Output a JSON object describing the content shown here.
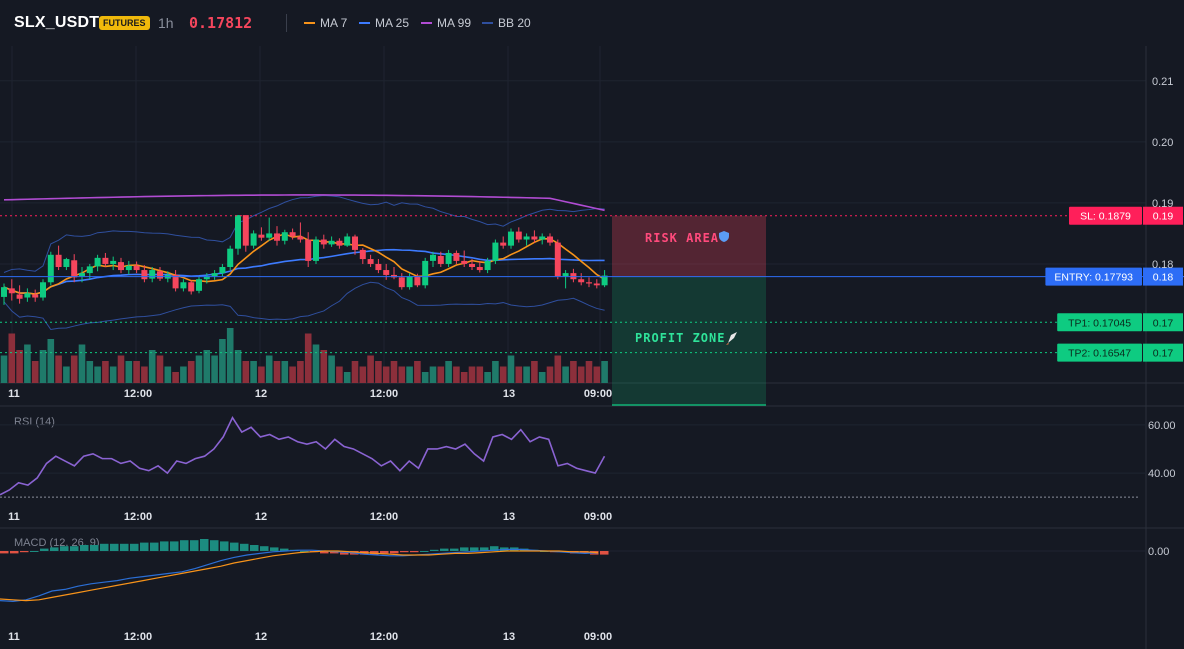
{
  "header": {
    "symbol": "SLX_USDT",
    "badge": "FUTURES",
    "interval": "1h",
    "last_price": "0.17812",
    "legend": [
      {
        "label": "MA 7",
        "color": "#f7931a"
      },
      {
        "label": "MA 25",
        "color": "#3d7bff"
      },
      {
        "label": "MA 99",
        "color": "#b14cd3"
      },
      {
        "label": "BB 20",
        "color": "#2f4f9e"
      }
    ]
  },
  "colors": {
    "up": "#0ecb81",
    "down": "#f6465d",
    "vol_up": "#1f7a6a",
    "vol_down": "#8c2f3b",
    "rsi": "#8a63d2",
    "macd_line": "#2b6fd6",
    "signal_line": "#f7931a",
    "sl": "#ff1f5a",
    "entry": "#2d6df6",
    "tp": "#0ecb81"
  },
  "price_axis": {
    "ticks": [
      "0.21",
      "0.20",
      "0.19",
      "0.18"
    ],
    "tick_values": [
      0.21,
      0.2,
      0.19,
      0.18
    ],
    "range": [
      0.1605,
      0.2157
    ]
  },
  "time_axis": [
    "11",
    "12:00",
    "12",
    "12:00",
    "13",
    "09:00"
  ],
  "levels": {
    "sl": {
      "label": "SL: 0.1879",
      "axis": "0.19",
      "value": 0.1879
    },
    "entry": {
      "label": "ENTRY: 0.17793",
      "axis": "0.18",
      "value": 0.17793
    },
    "tp1": {
      "label": "TP1: 0.17045",
      "axis": "0.17",
      "value": 0.17045
    },
    "tp2": {
      "label": "TP2: 0.16547",
      "axis": "0.17",
      "value": 0.16547
    }
  },
  "zones": {
    "risk": {
      "label": "RISK AREA",
      "icon": "shield-icon"
    },
    "profit": {
      "label": "PROFIT ZONE",
      "icon": "rocket-icon"
    }
  },
  "rsi": {
    "label": "RSI (14)",
    "ticks": [
      "60.00",
      "40.00"
    ],
    "tick_values": [
      60,
      40
    ],
    "threshold": 30,
    "range": [
      28,
      67
    ]
  },
  "macd": {
    "label": "MACD (12, 26, 9)",
    "ticks": [
      "0.00"
    ],
    "tick_values": [
      0
    ]
  },
  "chart_data": {
    "type": "candlestick",
    "candles": [
      [
        0.1746,
        0.1768,
        0.1733,
        0.1762
      ],
      [
        0.176,
        0.1775,
        0.174,
        0.1752
      ],
      [
        0.175,
        0.1765,
        0.1735,
        0.1743
      ],
      [
        0.1745,
        0.176,
        0.1738,
        0.1752
      ],
      [
        0.175,
        0.1758,
        0.1738,
        0.1745
      ],
      [
        0.1745,
        0.1775,
        0.174,
        0.177
      ],
      [
        0.177,
        0.182,
        0.1765,
        0.1815
      ],
      [
        0.1815,
        0.183,
        0.179,
        0.1795
      ],
      [
        0.1795,
        0.181,
        0.179,
        0.1808
      ],
      [
        0.1806,
        0.1816,
        0.177,
        0.1778
      ],
      [
        0.178,
        0.1795,
        0.177,
        0.1785
      ],
      [
        0.1785,
        0.18,
        0.1775,
        0.1796
      ],
      [
        0.1796,
        0.1815,
        0.1788,
        0.181
      ],
      [
        0.181,
        0.1818,
        0.1795,
        0.18
      ],
      [
        0.18,
        0.1812,
        0.179,
        0.1805
      ],
      [
        0.1803,
        0.181,
        0.1785,
        0.179
      ],
      [
        0.179,
        0.1805,
        0.1783,
        0.1797
      ],
      [
        0.1797,
        0.1804,
        0.1785,
        0.179
      ],
      [
        0.179,
        0.1798,
        0.177,
        0.1775
      ],
      [
        0.1776,
        0.1795,
        0.177,
        0.179
      ],
      [
        0.1788,
        0.1795,
        0.1772,
        0.1776
      ],
      [
        0.1776,
        0.1788,
        0.177,
        0.1782
      ],
      [
        0.1782,
        0.179,
        0.1755,
        0.176
      ],
      [
        0.176,
        0.1775,
        0.1755,
        0.177
      ],
      [
        0.177,
        0.1773,
        0.175,
        0.1755
      ],
      [
        0.1756,
        0.178,
        0.1752,
        0.1775
      ],
      [
        0.1775,
        0.1785,
        0.1768,
        0.178
      ],
      [
        0.178,
        0.179,
        0.1774,
        0.1785
      ],
      [
        0.1785,
        0.18,
        0.178,
        0.1795
      ],
      [
        0.1795,
        0.183,
        0.179,
        0.1825
      ],
      [
        0.1825,
        0.188,
        0.1815,
        0.188
      ],
      [
        0.188,
        0.188,
        0.182,
        0.183
      ],
      [
        0.183,
        0.1855,
        0.1825,
        0.185
      ],
      [
        0.1848,
        0.186,
        0.1838,
        0.1843
      ],
      [
        0.1843,
        0.1876,
        0.1838,
        0.185
      ],
      [
        0.185,
        0.1862,
        0.183,
        0.1838
      ],
      [
        0.1838,
        0.1856,
        0.1832,
        0.1852
      ],
      [
        0.1852,
        0.1858,
        0.184,
        0.1845
      ],
      [
        0.1845,
        0.1868,
        0.1835,
        0.184
      ],
      [
        0.184,
        0.1852,
        0.1795,
        0.1805
      ],
      [
        0.1805,
        0.1845,
        0.18,
        0.184
      ],
      [
        0.184,
        0.1848,
        0.1825,
        0.1832
      ],
      [
        0.1832,
        0.1845,
        0.1828,
        0.1838
      ],
      [
        0.1838,
        0.1842,
        0.1825,
        0.183
      ],
      [
        0.183,
        0.185,
        0.1828,
        0.1845
      ],
      [
        0.1845,
        0.1848,
        0.1815,
        0.1823
      ],
      [
        0.1823,
        0.1826,
        0.18,
        0.1808
      ],
      [
        0.1808,
        0.1815,
        0.1795,
        0.18
      ],
      [
        0.18,
        0.1808,
        0.1785,
        0.179
      ],
      [
        0.179,
        0.18,
        0.1774,
        0.1782
      ],
      [
        0.1782,
        0.1795,
        0.1775,
        0.1778
      ],
      [
        0.1778,
        0.1785,
        0.1758,
        0.1762
      ],
      [
        0.1762,
        0.1785,
        0.1758,
        0.178
      ],
      [
        0.178,
        0.1784,
        0.1762,
        0.1765
      ],
      [
        0.1765,
        0.181,
        0.176,
        0.1805
      ],
      [
        0.1805,
        0.182,
        0.1795,
        0.1815
      ],
      [
        0.1813,
        0.182,
        0.1795,
        0.18
      ],
      [
        0.18,
        0.1823,
        0.1795,
        0.1818
      ],
      [
        0.1818,
        0.1822,
        0.18,
        0.1805
      ],
      [
        0.1805,
        0.1822,
        0.1795,
        0.18
      ],
      [
        0.18,
        0.1808,
        0.179,
        0.1795
      ],
      [
        0.1795,
        0.1805,
        0.1786,
        0.179
      ],
      [
        0.179,
        0.181,
        0.1785,
        0.1805
      ],
      [
        0.1805,
        0.184,
        0.18,
        0.1835
      ],
      [
        0.1835,
        0.1845,
        0.1825,
        0.183
      ],
      [
        0.183,
        0.1858,
        0.1825,
        0.1853
      ],
      [
        0.1853,
        0.186,
        0.1835,
        0.184
      ],
      [
        0.184,
        0.185,
        0.183,
        0.1845
      ],
      [
        0.1845,
        0.1855,
        0.1835,
        0.184
      ],
      [
        0.184,
        0.185,
        0.1832,
        0.1845
      ],
      [
        0.1845,
        0.185,
        0.183,
        0.1835
      ],
      [
        0.1835,
        0.184,
        0.1775,
        0.178
      ],
      [
        0.178,
        0.179,
        0.176,
        0.1785
      ],
      [
        0.1785,
        0.1792,
        0.177,
        0.1775
      ],
      [
        0.1775,
        0.1785,
        0.1765,
        0.177
      ],
      [
        0.177,
        0.1778,
        0.1762,
        0.1768
      ],
      [
        0.1768,
        0.1775,
        0.176,
        0.1765
      ],
      [
        0.1765,
        0.179,
        0.1762,
        0.1781
      ]
    ],
    "volume": [
      5,
      9,
      6,
      7,
      4,
      6,
      8,
      5,
      3,
      5,
      7,
      4,
      3,
      4,
      3,
      5,
      4,
      4,
      3,
      6,
      5,
      3,
      2,
      3,
      4,
      5,
      6,
      5,
      8,
      10,
      6,
      4,
      4,
      3,
      5,
      4,
      4,
      3,
      4,
      9,
      7,
      6,
      5,
      3,
      2,
      4,
      3,
      5,
      4,
      3,
      4,
      3,
      3,
      4,
      2,
      3,
      3,
      4,
      3,
      2,
      3,
      3,
      2,
      4,
      3,
      5,
      3,
      3,
      4,
      2,
      3,
      5,
      3,
      4,
      3,
      4,
      3,
      4
    ],
    "rsi": [
      31,
      33,
      36,
      35,
      38,
      44,
      47,
      45,
      43,
      47,
      48,
      46,
      46,
      44,
      45,
      42,
      41,
      43,
      40,
      45,
      44,
      46,
      47,
      50,
      55,
      63,
      57,
      59,
      55,
      56,
      54,
      55,
      53,
      52,
      53,
      50,
      54,
      51,
      50,
      48,
      46,
      43,
      45,
      41,
      45,
      42,
      50,
      50,
      51,
      50,
      52,
      48,
      45,
      55,
      56,
      54,
      58,
      53,
      55,
      54,
      43,
      44,
      42,
      41,
      40,
      47
    ],
    "macd": [
      -6.2,
      -6.3,
      -6.1,
      -5.6,
      -5.0,
      -4.8,
      -4.4,
      -4.1,
      -3.9,
      -3.7,
      -3.4,
      -3.2,
      -3.0,
      -2.8,
      -2.6,
      -2.2,
      -1.7,
      -1.2,
      -0.8,
      -0.5,
      -0.3,
      -0.1,
      0.0,
      0.1,
      0.1,
      0.0,
      -0.1,
      -0.2,
      -0.4,
      -0.5,
      -0.6,
      -0.6,
      -0.5,
      -0.4,
      -0.3,
      -0.2,
      -0.1,
      0.0,
      0.1,
      0.2,
      0.2,
      0.1,
      0.0,
      -0.1,
      -0.2,
      -0.3,
      -0.2
    ],
    "signal": [
      -6.0,
      -6.1,
      -6.2,
      -6.1,
      -5.8,
      -5.5,
      -5.2,
      -4.9,
      -4.6,
      -4.3,
      -4.0,
      -3.7,
      -3.4,
      -3.1,
      -2.8,
      -2.5,
      -2.2,
      -1.9,
      -1.5,
      -1.2,
      -0.9,
      -0.6,
      -0.4,
      -0.2,
      -0.1,
      0.0,
      0.0,
      -0.1,
      -0.2,
      -0.3,
      -0.4,
      -0.5,
      -0.5,
      -0.5,
      -0.4,
      -0.3,
      -0.3,
      -0.2,
      -0.1,
      0.0,
      0.0,
      0.0,
      0.0,
      0.0,
      -0.1,
      -0.1,
      -0.2
    ],
    "hist": [
      -2,
      -2,
      -1,
      0,
      2,
      3,
      4,
      4,
      5,
      5,
      6,
      6,
      6,
      6,
      7,
      7,
      8,
      8,
      9,
      9,
      10,
      9,
      8,
      7,
      6,
      5,
      4,
      3,
      2,
      1,
      0,
      -1,
      -2,
      -2,
      -3,
      -3,
      -3,
      -3,
      -2,
      -2,
      -1,
      -1,
      0,
      1,
      2,
      2,
      3,
      3,
      3,
      4,
      3,
      3,
      2,
      1,
      0,
      -1,
      -1,
      -2,
      -2,
      -3,
      -3
    ]
  }
}
